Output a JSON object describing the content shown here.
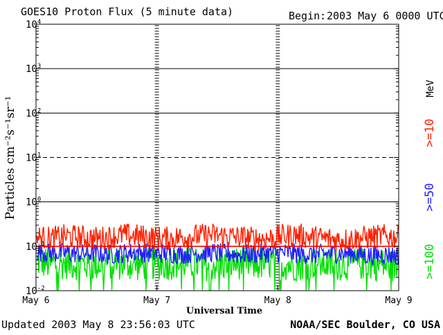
{
  "header": {
    "title": "GOES10 Proton Flux (5 minute data)",
    "begin_label": "Begin:",
    "begin_value": "2003 May 6 0000 UTC"
  },
  "footer": {
    "updated": "Updated 2003 May  8 23:56:03 UTC",
    "credit": "NOAA/SEC Boulder, CO USA"
  },
  "chart_data": {
    "type": "line",
    "title": "GOES10 Proton Flux (5 minute data)",
    "xlabel": "Universal Time",
    "ylabel": "Particles cm⁻²s⁻¹sr⁻¹",
    "y_scale": "log",
    "ylim": [
      0.01,
      10000
    ],
    "y_ticks": [
      {
        "base": "10",
        "exp": "-2",
        "value": 0.01
      },
      {
        "base": "10",
        "exp": "-1",
        "value": 0.1
      },
      {
        "base": "10",
        "exp": "0",
        "value": 1
      },
      {
        "base": "10",
        "exp": "1",
        "value": 10
      },
      {
        "base": "10",
        "exp": "2",
        "value": 100
      },
      {
        "base": "10",
        "exp": "3",
        "value": 1000
      },
      {
        "base": "10",
        "exp": "4",
        "value": 10000
      }
    ],
    "x_ticks": [
      "May 6",
      "May 7",
      "May 8",
      "May 9"
    ],
    "reference_lines": [
      {
        "value": 10,
        "style": "dashed"
      },
      {
        "value": 0.1,
        "style": "solid",
        "color": "#ff0000"
      }
    ],
    "legend": {
      "unit": "MeV",
      "placement": "right",
      "entries": [
        {
          "label": ">=10",
          "color": "#ff2000"
        },
        {
          "label": ">=50",
          "color": "#2020ff"
        },
        {
          "label": ">=100",
          "color": "#00e000"
        }
      ]
    },
    "series": [
      {
        "name": ">=10",
        "color": "#ff2000",
        "values": [
          0.16,
          0.15,
          0.17,
          0.16,
          0.15,
          0.16,
          0.18,
          0.17,
          0.16,
          0.15,
          0.16,
          0.17,
          0.18,
          0.17,
          0.16,
          0.15,
          0.15,
          0.17,
          0.18,
          0.16,
          0.15,
          0.14,
          0.15,
          0.16,
          0.17,
          0.16
        ]
      },
      {
        "name": ">=50",
        "color": "#2020ff",
        "values": [
          0.075,
          0.07,
          0.072,
          0.068,
          0.07,
          0.065,
          0.07,
          0.075,
          0.068,
          0.07,
          0.066,
          0.07,
          0.072,
          0.07,
          0.065,
          0.068,
          0.07,
          0.072,
          0.068,
          0.065,
          0.066,
          0.07,
          0.068,
          0.062,
          0.065,
          0.062
        ]
      },
      {
        "name": ">=100",
        "color": "#00e000",
        "values": [
          0.045,
          0.04,
          0.042,
          0.04,
          0.038,
          0.042,
          0.04,
          0.038,
          0.041,
          0.04,
          0.043,
          0.04,
          0.038,
          0.04,
          0.042,
          0.039,
          0.041,
          0.04,
          0.038,
          0.042,
          0.04,
          0.039,
          0.041,
          0.04,
          0.038,
          0.036
        ]
      }
    ]
  }
}
